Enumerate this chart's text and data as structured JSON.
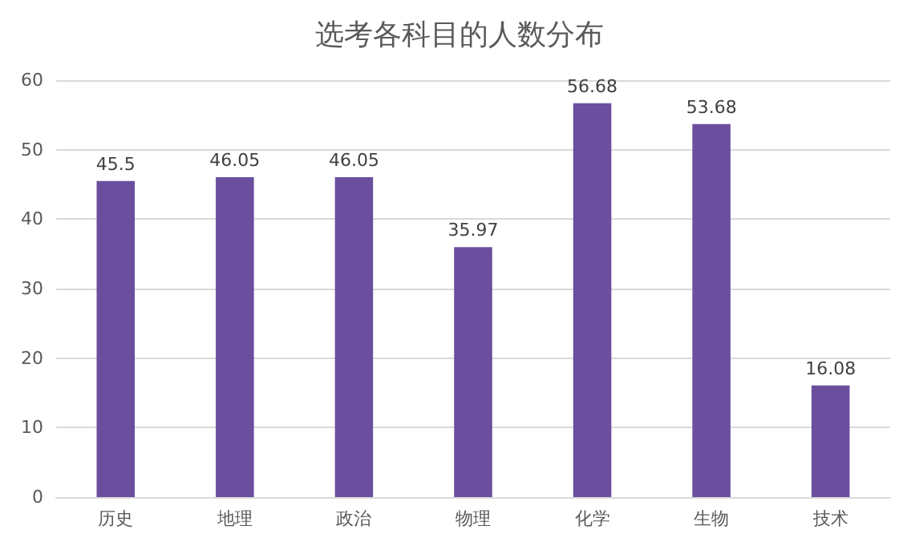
{
  "chart_data": {
    "type": "bar",
    "title": "选考各科目的人数分布",
    "categories": [
      "历史",
      "地理",
      "政治",
      "物理",
      "化学",
      "生物",
      "技术"
    ],
    "values": [
      45.5,
      46.05,
      46.05,
      35.97,
      56.68,
      53.68,
      16.08
    ],
    "color": "#6b4f9e",
    "ylim": [
      0,
      60
    ],
    "yticks": [
      0,
      10,
      20,
      30,
      40,
      50,
      60
    ],
    "grid": "y",
    "data_labels": true
  }
}
